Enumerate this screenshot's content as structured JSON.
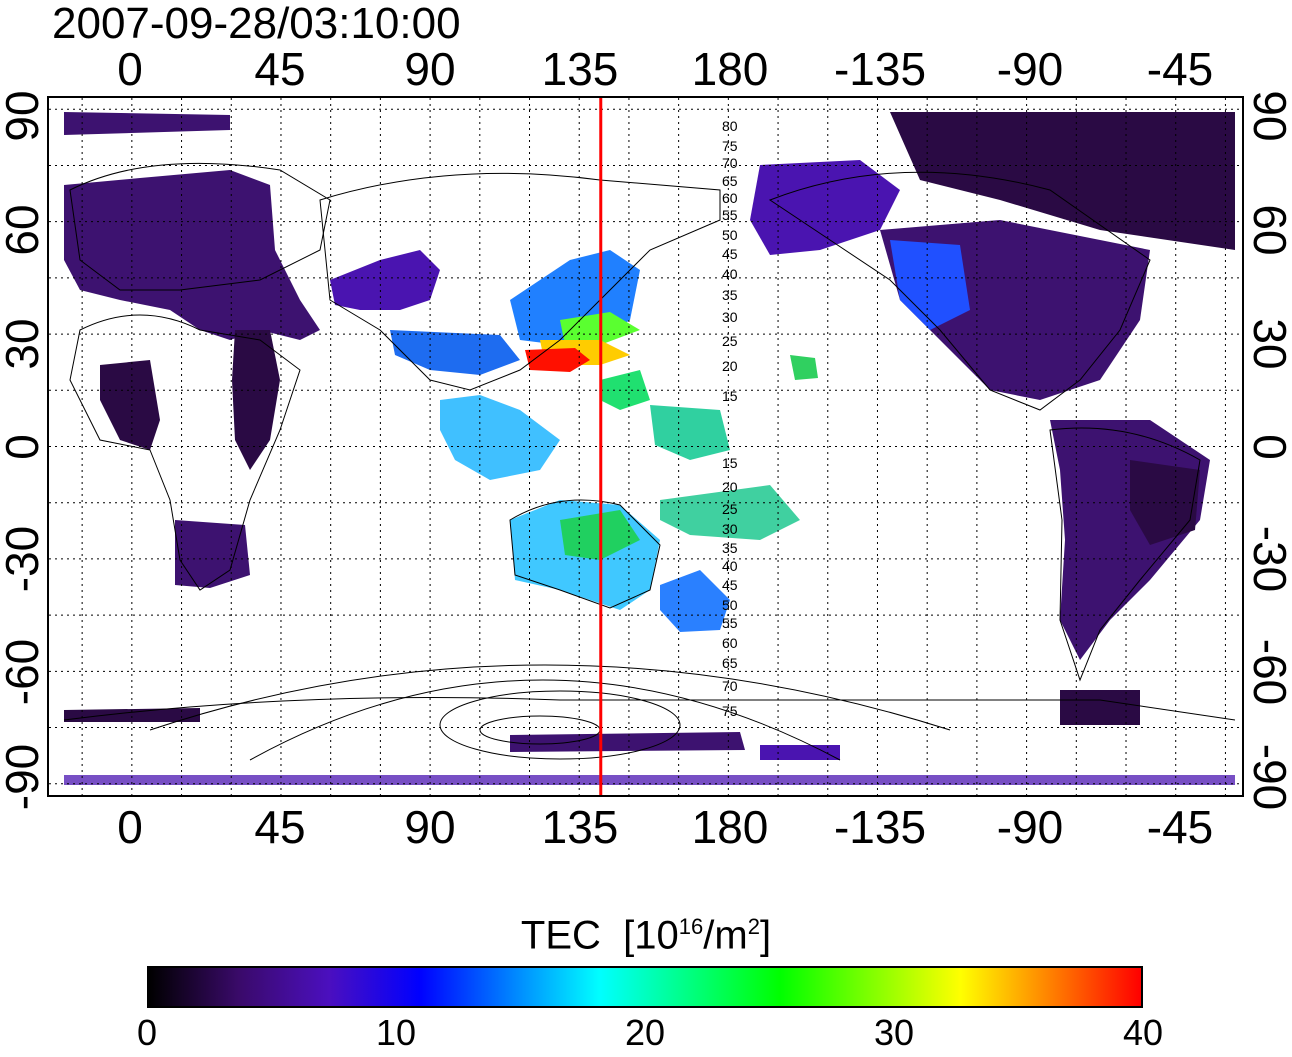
{
  "timestamp": "2007-09-28/03:10:00",
  "lon_ticks": [
    "0",
    "45",
    "90",
    "135",
    "180",
    "-135",
    "-90",
    "-45"
  ],
  "lat_ticks": [
    "90",
    "60",
    "30",
    "0",
    "-30",
    "-60",
    "-90"
  ],
  "contour_labels_north": [
    "80",
    "75",
    "70",
    "65",
    "60",
    "55",
    "50",
    "45",
    "40",
    "35",
    "30",
    "25",
    "20",
    "15"
  ],
  "contour_labels_south": [
    "15",
    "20",
    "25",
    "30",
    "35",
    "40",
    "45",
    "50",
    "55",
    "60",
    "65",
    "70",
    "75"
  ],
  "colorbar": {
    "title_main": "TEC",
    "title_unit_base": "[10",
    "title_unit_exp": "16",
    "title_unit_mid": "/m",
    "title_unit_exp2": "2",
    "title_unit_end": "]",
    "ticks": [
      "0",
      "10",
      "20",
      "30",
      "40"
    ],
    "range": [
      0,
      40
    ],
    "colors": [
      "#000000",
      "#3a0a6a",
      "#4b0fbf",
      "#0000ff",
      "#0080ff",
      "#00ffff",
      "#00ff80",
      "#00ff00",
      "#80ff00",
      "#ffff00",
      "#ff8000",
      "#ff0000"
    ]
  },
  "marker_line": {
    "lon": 141.5,
    "color": "#ff0000"
  },
  "map_extent": {
    "lon_min": -25,
    "lon_max": 335,
    "lat_min": -93,
    "lat_max": 93
  }
}
